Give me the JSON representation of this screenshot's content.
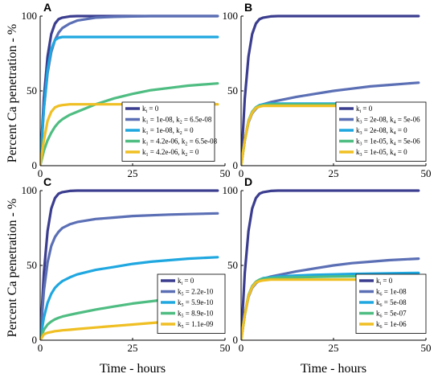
{
  "figure": {
    "ylabel": "Percent Ca penetration - %",
    "xlabel": "Time - hours"
  },
  "chart_data": [
    {
      "type": "line",
      "panel_label": "A",
      "xlim": [
        0,
        50
      ],
      "ylim": [
        0,
        100
      ],
      "xticks": [
        0,
        25,
        50
      ],
      "yticks": [
        0,
        50,
        100
      ],
      "x": [
        0,
        1,
        2,
        3,
        4,
        5,
        6,
        8,
        10,
        15,
        20,
        25,
        30,
        35,
        40,
        48
      ],
      "series": [
        {
          "legend": [
            [
              "k",
              "i",
              " = 0"
            ]
          ],
          "color": "#3b3d8f",
          "values": [
            0,
            45,
            73,
            88,
            95,
            98,
            99,
            99.8,
            100,
            100,
            100,
            100,
            100,
            100,
            100,
            100
          ]
        },
        {
          "legend": [
            [
              "k",
              "1",
              " = 1e-08,  "
            ],
            [
              "k",
              "2",
              " = 6.5e-08"
            ]
          ],
          "color": "#5b6fb5",
          "values": [
            0,
            38,
            62,
            76,
            84,
            89,
            92,
            95,
            97,
            99,
            99.5,
            99.8,
            100,
            100,
            100,
            100
          ]
        },
        {
          "legend": [
            [
              "k",
              "1",
              " = 1e-08,  "
            ],
            [
              "k",
              "2",
              " = 0"
            ]
          ],
          "color": "#1fa7e0",
          "values": [
            0,
            38,
            64,
            78,
            84,
            85.5,
            86,
            86,
            86,
            86,
            86,
            86,
            86,
            86,
            86,
            86
          ]
        },
        {
          "legend": [
            [
              "k",
              "1",
              " = 4.2e-06,  "
            ],
            [
              "k",
              "2",
              " = 6.5e-08"
            ]
          ],
          "color": "#4fbd82",
          "values": [
            0,
            10,
            17,
            22,
            26,
            29,
            31,
            34,
            36,
            41,
            45,
            48,
            50.5,
            52,
            53.5,
            55
          ]
        },
        {
          "legend": [
            [
              "k",
              "1",
              " = 4.2e-06,  "
            ],
            [
              "k",
              "2",
              " = 0"
            ]
          ],
          "color": "#efbf23",
          "values": [
            0,
            17,
            30,
            36,
            39,
            40,
            40.5,
            41,
            41,
            41,
            41,
            41,
            41,
            41,
            41,
            41
          ]
        }
      ]
    },
    {
      "type": "line",
      "panel_label": "B",
      "xlim": [
        0,
        50
      ],
      "ylim": [
        0,
        100
      ],
      "xticks": [
        0,
        25,
        50
      ],
      "yticks": [
        0,
        50,
        100
      ],
      "x": [
        0,
        1,
        2,
        3,
        4,
        5,
        6,
        8,
        10,
        15,
        20,
        25,
        30,
        35,
        40,
        48
      ],
      "series": [
        {
          "legend": [
            [
              "k",
              "i",
              " = 0"
            ]
          ],
          "color": "#3b3d8f",
          "values": [
            0,
            45,
            73,
            88,
            95,
            98,
            99,
            99.8,
            100,
            100,
            100,
            100,
            100,
            100,
            100,
            100
          ]
        },
        {
          "legend": [
            [
              "k",
              "3",
              " = 2e-08,  "
            ],
            [
              "k",
              "4",
              " = 5e-06"
            ]
          ],
          "color": "#5b6fb5",
          "values": [
            0,
            17,
            29,
            35,
            38,
            40,
            41,
            42.5,
            43.5,
            46,
            48,
            50,
            51.5,
            53,
            54,
            55.5
          ]
        },
        {
          "legend": [
            [
              "k",
              "3",
              " = 2e-08,  "
            ],
            [
              "k",
              "4",
              " = 0"
            ]
          ],
          "color": "#1fa7e0",
          "values": [
            0,
            17,
            30,
            36,
            39,
            40.5,
            41,
            41.5,
            41.5,
            41.5,
            41.5,
            41.5,
            41.5,
            41.5,
            41.5,
            41.5
          ]
        },
        {
          "legend": [
            [
              "k",
              "3",
              " = 1e-05,  "
            ],
            [
              "k",
              "4",
              " = 5e-06"
            ]
          ],
          "color": "#4fbd82",
          "values": [
            0,
            17,
            30,
            36,
            39,
            40,
            40.5,
            41,
            41,
            41,
            41,
            41,
            41,
            41,
            41,
            41
          ]
        },
        {
          "legend": [
            [
              "k",
              "3",
              " = 1e-05,  "
            ],
            [
              "k",
              "4",
              " = 0"
            ]
          ],
          "color": "#efbf23",
          "values": [
            0,
            17,
            29.5,
            35.5,
            38.5,
            39.5,
            40,
            40,
            40,
            40,
            40,
            40,
            40,
            40,
            40,
            40
          ]
        }
      ]
    },
    {
      "type": "line",
      "panel_label": "C",
      "xlim": [
        0,
        50
      ],
      "ylim": [
        0,
        100
      ],
      "xticks": [
        0,
        25,
        50
      ],
      "yticks": [
        0,
        50,
        100
      ],
      "x": [
        0,
        1,
        2,
        3,
        4,
        5,
        6,
        8,
        10,
        15,
        20,
        25,
        30,
        35,
        40,
        48
      ],
      "series": [
        {
          "legend": [
            [
              "k",
              "i",
              " = 0"
            ]
          ],
          "color": "#3b3d8f",
          "values": [
            0,
            45,
            73,
            88,
            95,
            98,
            99,
            99.8,
            100,
            100,
            100,
            100,
            100,
            100,
            100,
            100
          ]
        },
        {
          "legend": [
            [
              "k",
              "5",
              " = 2.2e-10"
            ]
          ],
          "color": "#5b6fb5",
          "values": [
            0,
            33,
            52,
            63,
            69,
            72.5,
            75,
            77.5,
            79,
            81,
            82,
            83,
            83.5,
            84,
            84.3,
            84.8
          ]
        },
        {
          "legend": [
            [
              "k",
              "5",
              " = 5.9e-10"
            ]
          ],
          "color": "#1fa7e0",
          "values": [
            0,
            15,
            25,
            31,
            35,
            37.5,
            39.5,
            42,
            44,
            47,
            49,
            51,
            52.5,
            53.5,
            54.5,
            55.5
          ]
        },
        {
          "legend": [
            [
              "k",
              "5",
              " = 8.9e-10"
            ]
          ],
          "color": "#4fbd82",
          "values": [
            0,
            7,
            10.5,
            12.5,
            14,
            15,
            15.8,
            17,
            18,
            20.5,
            22.5,
            24.5,
            26,
            27.5,
            28.5,
            30
          ]
        },
        {
          "legend": [
            [
              "k",
              "5",
              " = 1.1e-09"
            ]
          ],
          "color": "#efbf23",
          "values": [
            0,
            4,
            5,
            5.5,
            6,
            6.3,
            6.6,
            7,
            7.5,
            8.5,
            9.5,
            10.5,
            11.5,
            12.5,
            13.5,
            15
          ]
        }
      ]
    },
    {
      "type": "line",
      "panel_label": "D",
      "xlim": [
        0,
        50
      ],
      "ylim": [
        0,
        100
      ],
      "xticks": [
        0,
        25,
        50
      ],
      "yticks": [
        0,
        50,
        100
      ],
      "x": [
        0,
        1,
        2,
        3,
        4,
        5,
        6,
        8,
        10,
        15,
        20,
        25,
        30,
        35,
        40,
        48
      ],
      "series": [
        {
          "legend": [
            [
              "k",
              "i",
              " = 0"
            ]
          ],
          "color": "#3b3d8f",
          "values": [
            0,
            45,
            73,
            88,
            95,
            98,
            99,
            99.8,
            100,
            100,
            100,
            100,
            100,
            100,
            100,
            100
          ]
        },
        {
          "legend": [
            [
              "k",
              "6",
              " = 1e-08"
            ]
          ],
          "color": "#5b6fb5",
          "values": [
            0,
            17,
            29,
            35,
            38,
            40,
            41,
            42.5,
            43.5,
            46,
            48,
            50,
            51.5,
            52.5,
            53.5,
            54.5
          ]
        },
        {
          "legend": [
            [
              "k",
              "6",
              " = 5e-08"
            ]
          ],
          "color": "#1fa7e0",
          "values": [
            0,
            17,
            30,
            36,
            39,
            40.5,
            41.5,
            42,
            42.5,
            43.2,
            43.7,
            44,
            44.3,
            44.5,
            44.7,
            45
          ]
        },
        {
          "legend": [
            [
              "k",
              "6",
              " = 5e-07"
            ]
          ],
          "color": "#4fbd82",
          "values": [
            0,
            17,
            30,
            36,
            39,
            40.5,
            41,
            41.5,
            41.8,
            42,
            42.3,
            42.5,
            42.7,
            42.8,
            42.9,
            43
          ]
        },
        {
          "legend": [
            [
              "k",
              "6",
              " = 1e-06"
            ]
          ],
          "color": "#efbf23",
          "values": [
            0,
            17,
            29.5,
            35.5,
            38.5,
            39.5,
            40,
            40.5,
            40.5,
            40.5,
            40.5,
            40.5,
            40.5,
            40.5,
            40.5,
            40.5
          ]
        }
      ]
    }
  ]
}
